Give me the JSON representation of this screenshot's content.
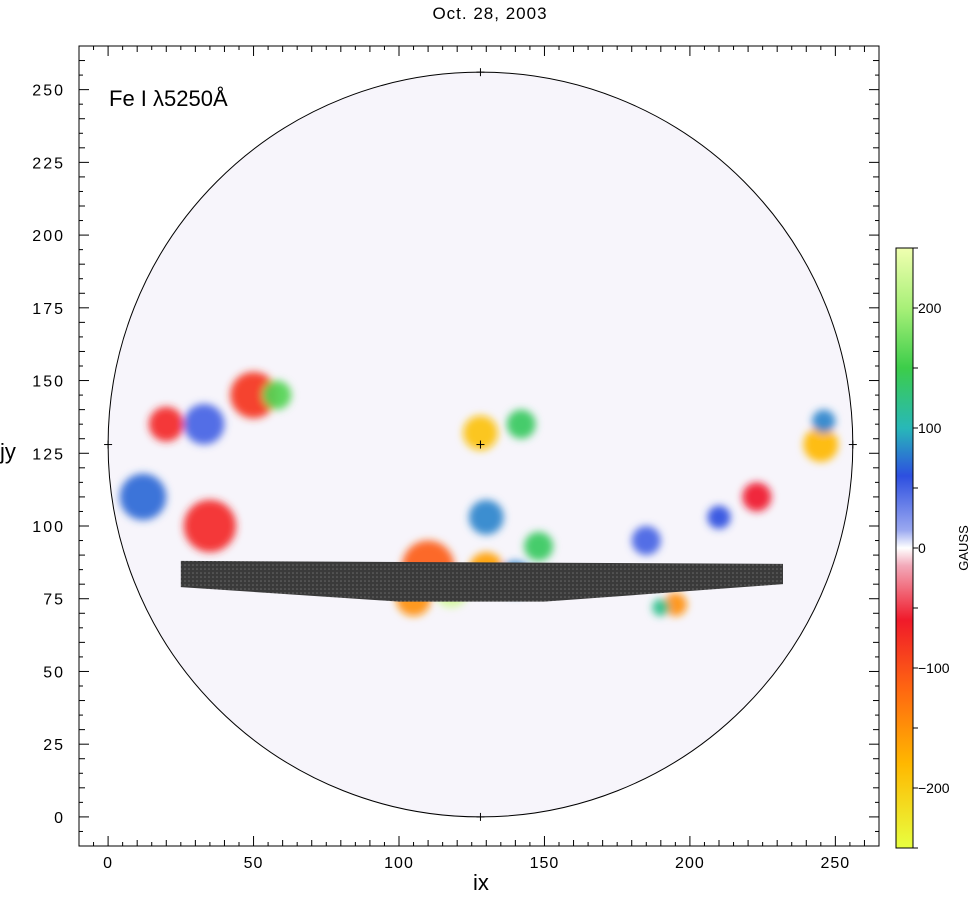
{
  "chart_data": {
    "type": "heatmap",
    "title": "Oct. 28, 2003",
    "annotation": "Fe I λ5250Å",
    "xlabel": "ix",
    "ylabel": "jy",
    "xlim": [
      -10,
      265
    ],
    "ylim": [
      -10,
      265
    ],
    "xticks": [
      0,
      50,
      100,
      150,
      200,
      250
    ],
    "yticks": [
      0,
      25,
      50,
      75,
      100,
      125,
      150,
      175,
      200,
      225,
      250
    ],
    "disk": {
      "center": [
        128,
        128
      ],
      "radius": 128
    },
    "colorbar": {
      "label": "GAUSS",
      "range": [
        -250,
        250
      ],
      "ticks": [
        200,
        100,
        0,
        -100,
        -200
      ],
      "stops": [
        {
          "value": 250,
          "color": "#f0ffb0"
        },
        {
          "value": 200,
          "color": "#a8f078"
        },
        {
          "value": 150,
          "color": "#3ccd4a"
        },
        {
          "value": 100,
          "color": "#28b8b8"
        },
        {
          "value": 60,
          "color": "#2d4fe0"
        },
        {
          "value": 15,
          "color": "#9aa8f0"
        },
        {
          "value": 0,
          "color": "#ffffff"
        },
        {
          "value": -15,
          "color": "#f2a8b8"
        },
        {
          "value": -60,
          "color": "#f01a2a"
        },
        {
          "value": -120,
          "color": "#ff6a10"
        },
        {
          "value": -180,
          "color": "#ffb800"
        },
        {
          "value": -250,
          "color": "#e8ff40"
        }
      ]
    },
    "features": [
      {
        "ix": 128,
        "jy": 128,
        "radius": 128,
        "value": 0,
        "description": "quiet-sun background"
      },
      {
        "ix": 20,
        "jy": 135,
        "radius": 6,
        "value": -70
      },
      {
        "ix": 35,
        "jy": 100,
        "radius": 9,
        "value": -70
      },
      {
        "ix": 12,
        "jy": 110,
        "radius": 8,
        "value": 70
      },
      {
        "ix": 33,
        "jy": 135,
        "radius": 7,
        "value": 50
      },
      {
        "ix": 50,
        "jy": 145,
        "radius": 8,
        "value": -80
      },
      {
        "ix": 58,
        "jy": 145,
        "radius": 5,
        "value": 160
      },
      {
        "ix": 128,
        "jy": 132,
        "radius": 6,
        "value": -190
      },
      {
        "ix": 142,
        "jy": 135,
        "radius": 5,
        "value": 140
      },
      {
        "ix": 130,
        "jy": 103,
        "radius": 6,
        "value": 80
      },
      {
        "ix": 148,
        "jy": 93,
        "radius": 5,
        "value": 140
      },
      {
        "ix": 110,
        "jy": 86,
        "radius": 9,
        "value": -110
      },
      {
        "ix": 118,
        "jy": 78,
        "radius": 6,
        "value": 230
      },
      {
        "ix": 105,
        "jy": 75,
        "radius": 6,
        "value": -150
      },
      {
        "ix": 130,
        "jy": 85,
        "radius": 6,
        "value": -160
      },
      {
        "ix": 140,
        "jy": 82,
        "radius": 6,
        "value": 80
      },
      {
        "ix": 195,
        "jy": 73,
        "radius": 4,
        "value": -150
      },
      {
        "ix": 190,
        "jy": 72,
        "radius": 3,
        "value": 120
      },
      {
        "ix": 245,
        "jy": 128,
        "radius": 6,
        "value": -180
      },
      {
        "ix": 246,
        "jy": 136,
        "radius": 4,
        "value": 80
      },
      {
        "ix": 223,
        "jy": 110,
        "radius": 5,
        "value": -60
      },
      {
        "ix": 210,
        "jy": 103,
        "radius": 4,
        "value": 60
      },
      {
        "ix": 185,
        "jy": 95,
        "radius": 5,
        "value": 50
      }
    ],
    "masked_band": [
      [
        25,
        88
      ],
      [
        232,
        87
      ],
      [
        232,
        80
      ],
      [
        150,
        74
      ],
      [
        100,
        74
      ],
      [
        25,
        79
      ]
    ]
  }
}
